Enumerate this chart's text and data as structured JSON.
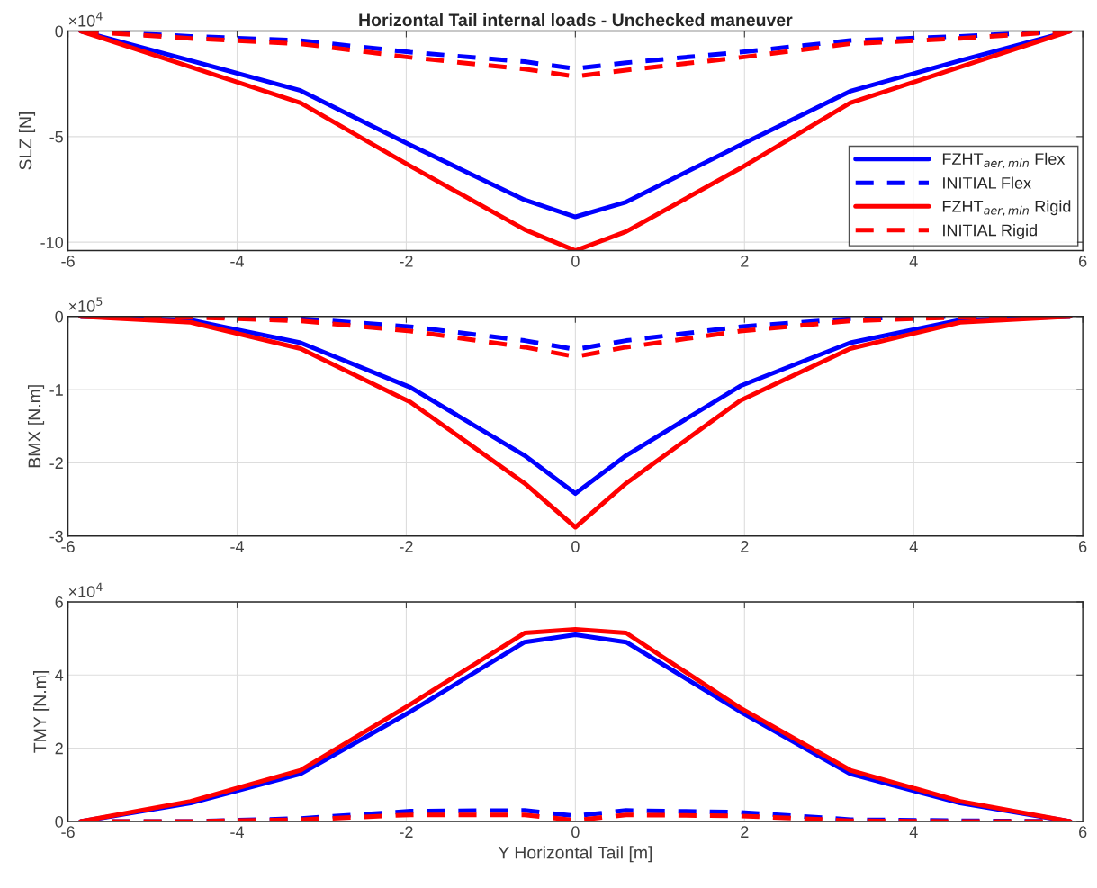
{
  "chart_data": [
    {
      "type": "line",
      "title": "Horizontal Tail internal loads - Unchecked maneuver",
      "ylabel": "SLZ [N]",
      "annotations": [
        "×10$^{4}$"
      ],
      "x": [
        -5.85,
        -4.55,
        -3.25,
        -1.95,
        -0.6,
        0,
        0.6,
        1.95,
        3.25,
        4.55,
        5.85
      ],
      "xlim": [
        -6,
        6
      ],
      "xticks": [
        -6,
        -4,
        -2,
        0,
        2,
        4,
        6
      ],
      "ylim": [
        -10.4,
        0
      ],
      "yticks": [
        -10,
        -5,
        0
      ],
      "grid": true,
      "legend": "lower right",
      "series": [
        {
          "name": "FZHT$_{aer,min}$ Flex",
          "color": "#0000ff",
          "line_style": "solid",
          "values": [
            0,
            -1.4,
            -2.82,
            -5.4,
            -8.0,
            -8.8,
            -8.1,
            -5.4,
            -2.85,
            -1.4,
            0
          ]
        },
        {
          "name": "INITIAL Flex",
          "color": "#0000ff",
          "line_style": "dashed",
          "values": [
            0,
            -0.25,
            -0.45,
            -1.0,
            -1.45,
            -1.78,
            -1.5,
            -1.0,
            -0.45,
            -0.25,
            0
          ]
        },
        {
          "name": "FZHT$_{aer,min}$ Rigid",
          "color": "#ff0000",
          "line_style": "solid",
          "values": [
            0,
            -1.7,
            -3.4,
            -6.4,
            -9.4,
            -10.4,
            -9.5,
            -6.5,
            -3.4,
            -1.7,
            0
          ]
        },
        {
          "name": "INITIAL Rigid",
          "color": "#ff0000",
          "line_style": "dashed",
          "values": [
            0,
            -0.35,
            -0.6,
            -1.25,
            -1.8,
            -2.15,
            -1.85,
            -1.25,
            -0.6,
            -0.35,
            0
          ]
        }
      ]
    },
    {
      "type": "line",
      "ylabel": "BMX [N.m]",
      "annotations": [
        "×10$^{5}$"
      ],
      "x": [
        -5.85,
        -4.55,
        -3.25,
        -1.95,
        -0.6,
        0,
        0.6,
        1.95,
        3.25,
        4.55,
        5.85
      ],
      "xlim": [
        -6,
        6
      ],
      "xticks": [
        -6,
        -4,
        -2,
        0,
        2,
        4,
        6
      ],
      "ylim": [
        -3,
        0
      ],
      "yticks": [
        -3,
        -2,
        -1,
        0
      ],
      "grid": true,
      "series": [
        {
          "color": "#0000ff",
          "line_style": "solid",
          "values": [
            0,
            -0.05,
            -0.36,
            -0.97,
            -1.9,
            -2.42,
            -1.9,
            -0.95,
            -0.36,
            -0.05,
            0
          ]
        },
        {
          "color": "#0000ff",
          "line_style": "dashed",
          "values": [
            0,
            0,
            -0.03,
            -0.14,
            -0.33,
            -0.45,
            -0.33,
            -0.14,
            -0.03,
            0,
            0
          ]
        },
        {
          "color": "#ff0000",
          "line_style": "solid",
          "values": [
            0,
            -0.08,
            -0.44,
            -1.17,
            -2.28,
            -2.88,
            -2.28,
            -1.15,
            -0.44,
            -0.08,
            0
          ]
        },
        {
          "color": "#ff0000",
          "line_style": "dashed",
          "values": [
            0,
            -0.01,
            -0.06,
            -0.2,
            -0.42,
            -0.55,
            -0.42,
            -0.2,
            -0.06,
            -0.01,
            0
          ]
        }
      ]
    },
    {
      "type": "line",
      "ylabel": "TMY [N.m]",
      "xlabel": "Y Horizontal Tail [m]",
      "annotations": [
        "×10$^{4}$"
      ],
      "x": [
        -5.85,
        -4.55,
        -3.25,
        -1.95,
        -0.6,
        0,
        0.6,
        1.95,
        3.25,
        4.55,
        5.85
      ],
      "xlim": [
        -6,
        6
      ],
      "xticks": [
        -6,
        -4,
        -2,
        0,
        2,
        4,
        6
      ],
      "ylim": [
        0,
        6
      ],
      "yticks": [
        0,
        2,
        4,
        6
      ],
      "grid": true,
      "series": [
        {
          "color": "#0000ff",
          "line_style": "solid",
          "values": [
            0,
            0.5,
            1.3,
            3.0,
            4.9,
            5.1,
            4.9,
            3.0,
            1.3,
            0.5,
            0
          ]
        },
        {
          "color": "#0000ff",
          "line_style": "dashed",
          "values": [
            0,
            0,
            0.08,
            0.28,
            0.3,
            0.15,
            0.3,
            0.25,
            0.05,
            0.02,
            0
          ]
        },
        {
          "color": "#ff0000",
          "line_style": "solid",
          "values": [
            0,
            0.55,
            1.4,
            3.2,
            5.15,
            5.25,
            5.15,
            3.1,
            1.4,
            0.55,
            0
          ]
        },
        {
          "color": "#ff0000",
          "line_style": "dashed",
          "values": [
            0,
            0,
            0.05,
            0.18,
            0.18,
            0.03,
            0.18,
            0.15,
            0.02,
            0,
            0
          ]
        }
      ]
    }
  ]
}
